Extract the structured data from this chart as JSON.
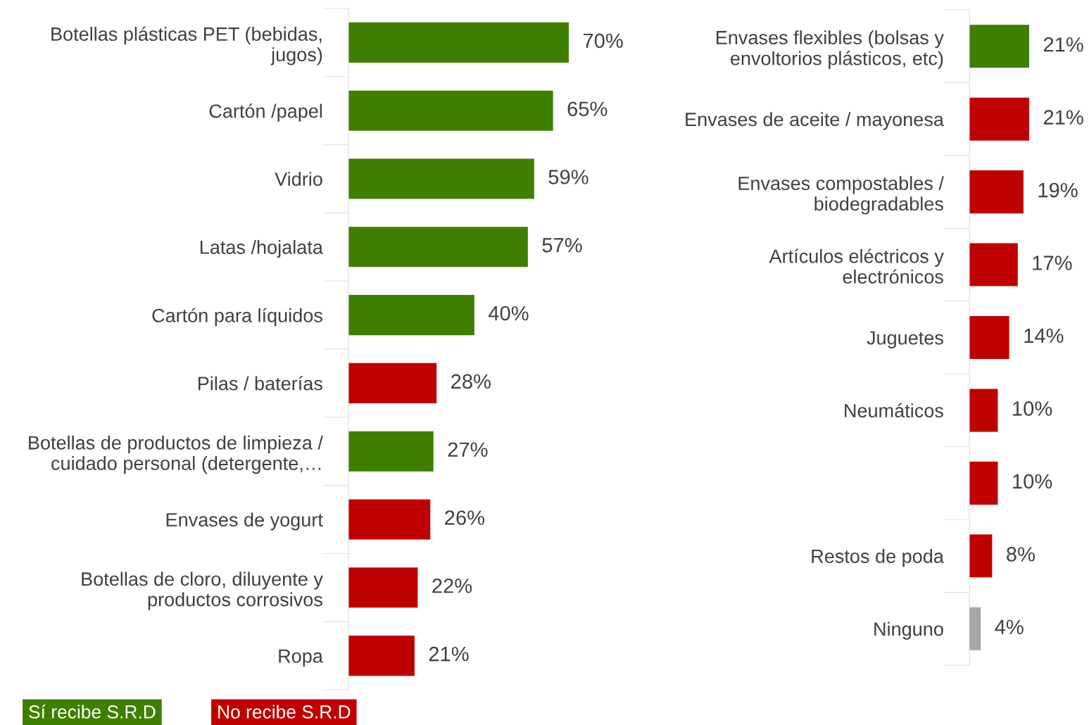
{
  "chart_data": [
    {
      "type": "bar",
      "orientation": "horizontal",
      "legend": "bottom left",
      "categories": [
        "Botellas plásticas PET (bebidas,\njugos)",
        "Cartón /papel",
        "Vidrio",
        "Latas /hojalata",
        "Cartón para líquidos",
        "Pilas / baterías",
        "Botellas de productos de limpieza /\ncuidado personal (detergente,…",
        "Envases de yogurt",
        "Botellas de cloro, diluyente y\nproductos corrosivos",
        "Ropa"
      ],
      "series": [
        {
          "name": "Sí recibe S.R.D",
          "color": "#3f7f00",
          "values": [
            70,
            65,
            59,
            57,
            40,
            null,
            27,
            null,
            null,
            null
          ],
          "value_labels": [
            "70%",
            "65%",
            "59%",
            "57%",
            "40%",
            null,
            "27%",
            null,
            null,
            null
          ]
        },
        {
          "name": "No recibe S.R.D",
          "color": "#c00000",
          "values": [
            null,
            null,
            null,
            null,
            null,
            28,
            null,
            26,
            22,
            21
          ],
          "value_labels": [
            null,
            null,
            null,
            null,
            null,
            "28%",
            null,
            "26%",
            "22%",
            "21%"
          ]
        }
      ]
    },
    {
      "type": "bar",
      "orientation": "horizontal",
      "categories": [
        "Envases flexibles (bolsas y\nenvoltorios plásticos, etc)",
        "Envases de aceite / mayonesa",
        "Envases compostables /\nbiodegradables",
        "Artículos eléctricos y\nelectrónicos",
        "Juguetes",
        "Neumáticos",
        null,
        "Restos de poda",
        "Ninguno"
      ],
      "series": [
        {
          "color": "#3f7f00",
          "values": [
            21,
            null,
            null,
            null,
            null,
            null,
            null,
            null,
            null
          ],
          "value_labels": [
            "21%",
            null,
            null,
            null,
            null,
            null,
            null,
            null,
            null
          ]
        },
        {
          "color": "#c00000",
          "values": [
            null,
            21,
            19,
            17,
            14,
            10,
            10,
            8,
            null
          ],
          "value_labels": [
            null,
            "21%",
            "19%",
            "17%",
            "14%",
            "10%",
            "10%",
            "8%",
            null
          ]
        },
        {
          "color": "#a6a6a6",
          "values": [
            null,
            null,
            null,
            null,
            null,
            null,
            null,
            null,
            4
          ],
          "value_labels": [
            null,
            null,
            null,
            null,
            null,
            null,
            null,
            null,
            "4%"
          ]
        }
      ]
    }
  ]
}
